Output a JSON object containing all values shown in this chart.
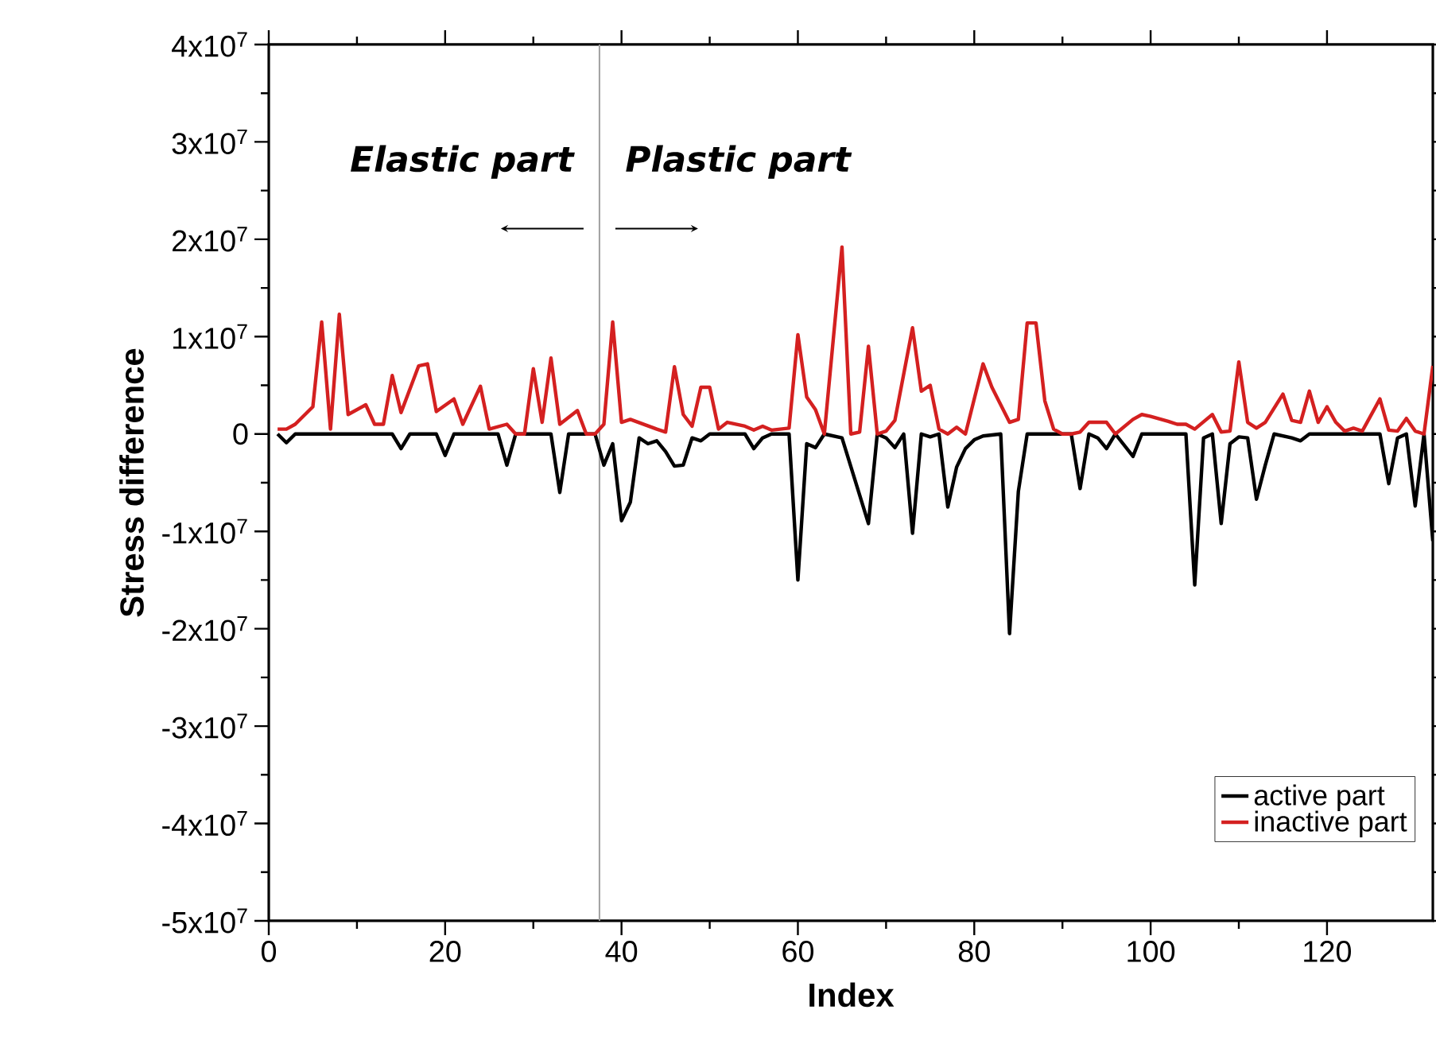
{
  "chart_data": {
    "type": "line",
    "xlabel": "Index",
    "ylabel": "Stress difference",
    "xlim": [
      0,
      132
    ],
    "ylim": [
      -50000000,
      40000000
    ],
    "xticks": [
      0,
      20,
      40,
      60,
      80,
      100,
      120
    ],
    "yticks": [
      {
        "value": -50000000,
        "label": "-5x10$^{7}$"
      },
      {
        "value": -40000000,
        "label": "-4x10$^{7}$"
      },
      {
        "value": -30000000,
        "label": "-3x10$^{7}$"
      },
      {
        "value": -20000000,
        "label": "-2x10$^{7}$"
      },
      {
        "value": -10000000,
        "label": "-1x10$^{7}$"
      },
      0,
      {
        "value": 10000000,
        "label": "1x10$^{7}$"
      },
      {
        "value": 20000000,
        "label": "2x10$^{7}$"
      },
      {
        "value": 30000000,
        "label": "3x10$^{7}$"
      },
      {
        "value": 40000000,
        "label": "4x10$^{7}$"
      }
    ],
    "grid": false,
    "legend": "bottom right",
    "marker": "none",
    "line_style": "solid",
    "ref_lines": [
      {
        "axis": "x",
        "value": 37.5,
        "color": "#a0a0a0"
      }
    ],
    "annotations": [
      "Elastic part",
      "Plastic part"
    ],
    "series": [
      {
        "name": "active part",
        "color": "#000000",
        "x": [
          1,
          2,
          3,
          14,
          15,
          16,
          19,
          20,
          21,
          26,
          27,
          28,
          32,
          33,
          34,
          37,
          38,
          39,
          40,
          41,
          42,
          43,
          44,
          45,
          46,
          47,
          48,
          49,
          50,
          54,
          55,
          56,
          57,
          59,
          60,
          61,
          62,
          63,
          65,
          68,
          69,
          70,
          71,
          72,
          73,
          74,
          75,
          76,
          77,
          78,
          79,
          80,
          81,
          83,
          84,
          85,
          86,
          91,
          92,
          93,
          94,
          95,
          96,
          98,
          99,
          104,
          105,
          106,
          107,
          108,
          109,
          110,
          111,
          112,
          113,
          114,
          116,
          117,
          118,
          126,
          127,
          128,
          129,
          130,
          131,
          132
        ],
        "values": [
          0,
          -900000,
          0,
          0,
          -1500000,
          0,
          0,
          -2200000,
          0,
          0,
          -3200000,
          0,
          0,
          -6000000,
          0,
          0,
          -3200000,
          -1000000,
          -8900000,
          -7000000,
          -400000,
          -1000000,
          -700000,
          -1800000,
          -3300000,
          -3200000,
          -400000,
          -700000,
          0,
          0,
          -1500000,
          -400000,
          0,
          0,
          -15000000,
          -1000000,
          -1400000,
          0,
          -400000,
          -9200000,
          0,
          -400000,
          -1400000,
          0,
          -10200000,
          0,
          -300000,
          0,
          -7500000,
          -3400000,
          -1500000,
          -600000,
          -200000,
          0,
          -20500000,
          -5900000,
          0,
          0,
          -5600000,
          0,
          -400000,
          -1500000,
          0,
          -2300000,
          0,
          0,
          -15500000,
          -400000,
          0,
          -9200000,
          -1000000,
          -300000,
          -400000,
          -6700000,
          -3200000,
          0,
          -400000,
          -700000,
          0,
          0,
          -5100000,
          -400000,
          0,
          -7400000,
          0,
          -11000000
        ]
      },
      {
        "name": "inactive part",
        "color": "#d42020",
        "x": [
          1,
          2,
          3,
          5,
          6,
          7,
          8,
          9,
          11,
          12,
          13,
          14,
          15,
          17,
          18,
          19,
          21,
          22,
          24,
          25,
          27,
          28,
          29,
          30,
          31,
          32,
          33,
          35,
          36,
          37,
          38,
          39,
          40,
          41,
          44,
          45,
          46,
          47,
          48,
          49,
          50,
          51,
          52,
          54,
          55,
          56,
          57,
          59,
          60,
          61,
          62,
          63,
          65,
          66,
          67,
          68,
          69,
          70,
          71,
          73,
          74,
          75,
          76,
          77,
          78,
          79,
          81,
          82,
          84,
          85,
          86,
          87,
          88,
          89,
          90,
          91,
          92,
          93,
          95,
          96,
          98,
          99,
          100,
          102,
          103,
          104,
          105,
          107,
          108,
          109,
          110,
          111,
          112,
          113,
          115,
          116,
          117,
          118,
          119,
          120,
          121,
          122,
          123,
          124,
          126,
          127,
          128,
          129,
          130,
          131,
          132
        ],
        "values": [
          500000,
          500000,
          1000000,
          2800000,
          11500000,
          500000,
          12300000,
          2000000,
          3000000,
          1000000,
          1000000,
          6000000,
          2200000,
          7000000,
          7200000,
          2300000,
          3600000,
          1000000,
          4900000,
          500000,
          1000000,
          0,
          0,
          6700000,
          1200000,
          7800000,
          1000000,
          2400000,
          0,
          0,
          1000000,
          11500000,
          1200000,
          1500000,
          500000,
          200000,
          6900000,
          2000000,
          800000,
          4800000,
          4800000,
          500000,
          1200000,
          800000,
          400000,
          800000,
          400000,
          600000,
          10200000,
          3800000,
          2500000,
          0,
          19200000,
          0,
          200000,
          9000000,
          0,
          300000,
          1400000,
          10900000,
          4400000,
          5000000,
          500000,
          0,
          700000,
          0,
          7200000,
          4800000,
          1200000,
          1500000,
          11400000,
          11400000,
          3400000,
          500000,
          0,
          0,
          200000,
          1200000,
          1200000,
          0,
          1500000,
          2000000,
          1800000,
          1300000,
          1000000,
          1000000,
          500000,
          2000000,
          200000,
          300000,
          7400000,
          1200000,
          600000,
          1200000,
          4100000,
          1400000,
          1200000,
          4400000,
          1200000,
          2800000,
          1200000,
          300000,
          600000,
          300000,
          3600000,
          400000,
          300000,
          1600000,
          300000,
          0,
          7000000
        ]
      }
    ]
  }
}
